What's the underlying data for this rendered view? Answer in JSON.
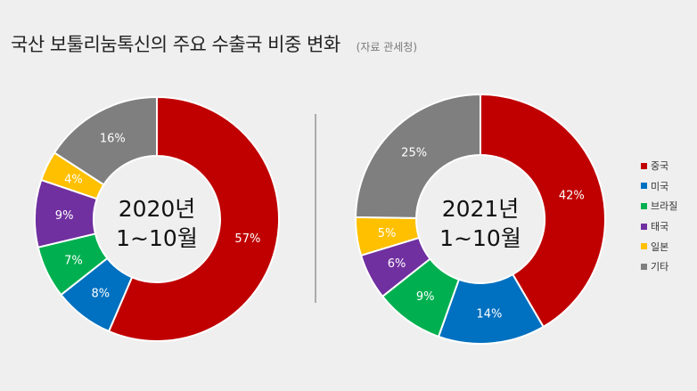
{
  "title": "국산 보툴리눔톡신의 주요 수출국 비중 변화",
  "source": "(자료 관세청)",
  "colors": {
    "china": "#c00000",
    "usa": "#0070c0",
    "brazil": "#00b050",
    "thailand": "#7030a0",
    "japan": "#ffc000",
    "others": "#7f7f7f"
  },
  "legend": [
    {
      "label": "중국",
      "color": "#c00000"
    },
    {
      "label": "미국",
      "color": "#0070c0"
    },
    {
      "label": "브라질",
      "color": "#00b050"
    },
    {
      "label": "태국",
      "color": "#7030a0"
    },
    {
      "label": "일본",
      "color": "#ffc000"
    },
    {
      "label": "기타",
      "color": "#7f7f7f"
    }
  ],
  "chart_data": [
    {
      "type": "pie",
      "center_label": [
        "2020년",
        "1~10월"
      ],
      "categories": [
        "중국",
        "미국",
        "브라질",
        "태국",
        "일본",
        "기타"
      ],
      "values": [
        57,
        8,
        7,
        9,
        4,
        16
      ],
      "labels": [
        "57%",
        "8%",
        "7%",
        "9%",
        "4%",
        "16%"
      ]
    },
    {
      "type": "pie",
      "center_label": [
        "2021년",
        "1~10월"
      ],
      "categories": [
        "중국",
        "미국",
        "브라질",
        "태국",
        "일본",
        "기타"
      ],
      "values": [
        42,
        14,
        9,
        6,
        5,
        25
      ],
      "labels": [
        "42%",
        "14%",
        "9%",
        "6%",
        "5%",
        "25%"
      ]
    }
  ]
}
